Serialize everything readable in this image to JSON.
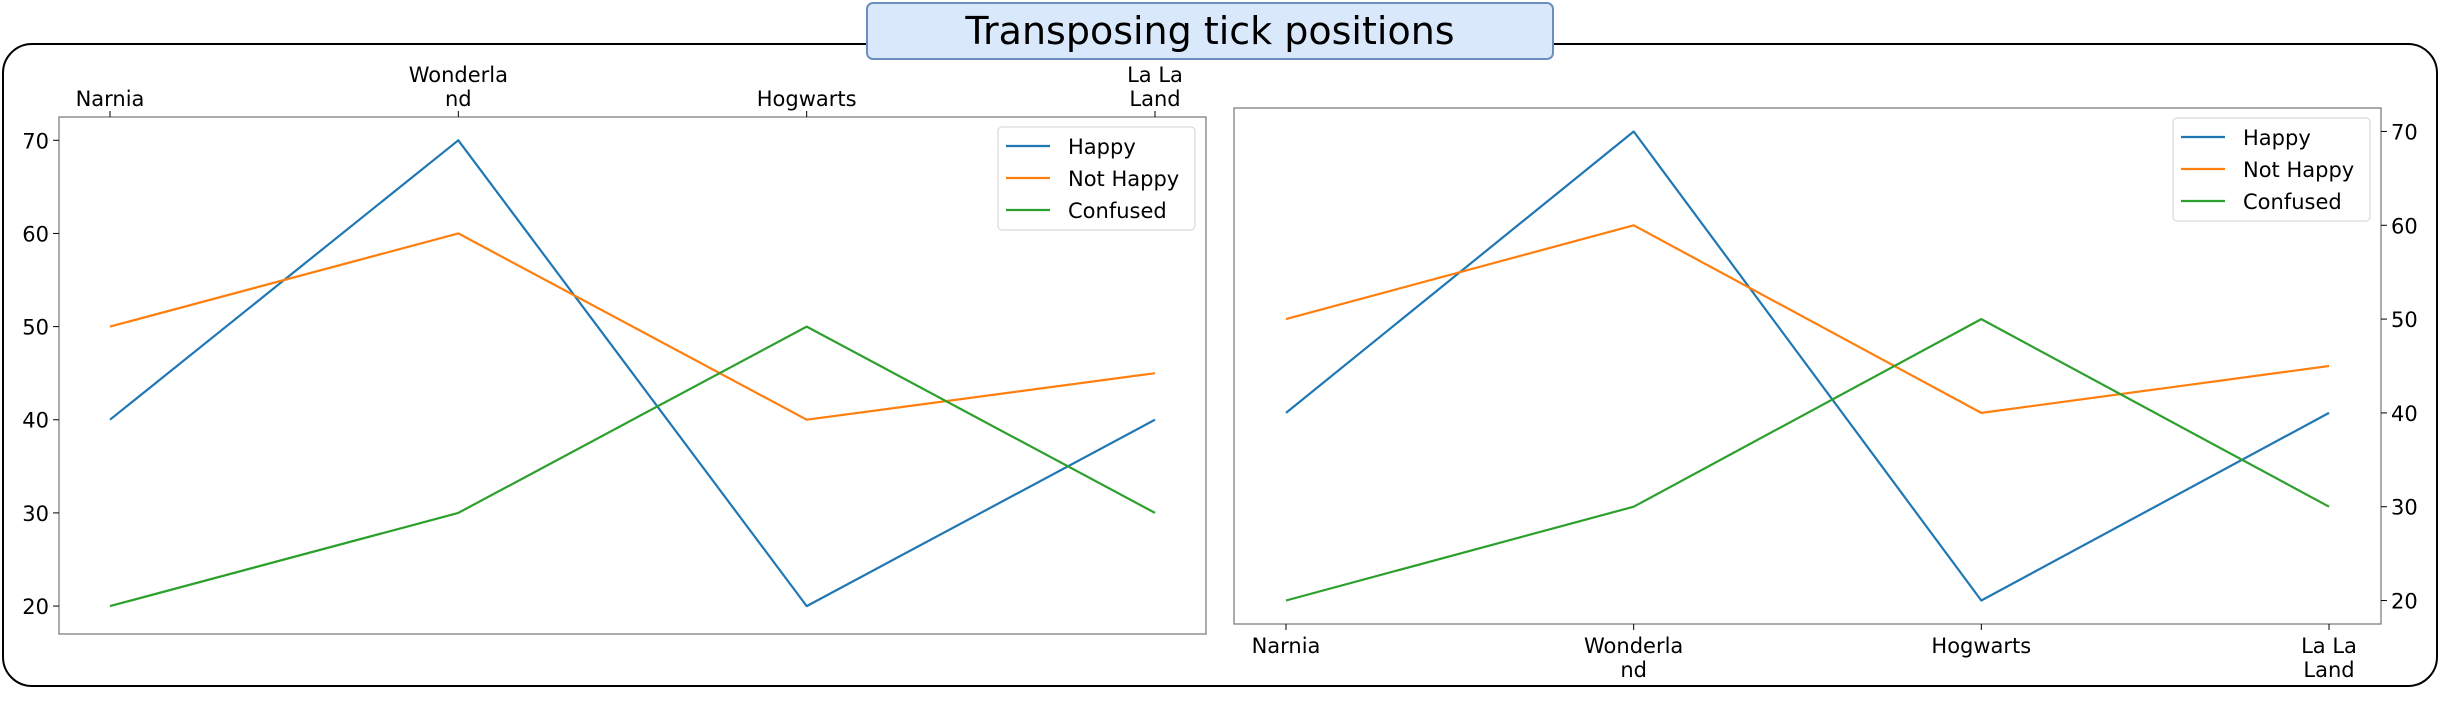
{
  "title": "Transposing tick positions",
  "colors": {
    "Happy": "#1f77b4",
    "Not Happy": "#ff7f0e",
    "Confused": "#2ca02c"
  },
  "chart_data": [
    {
      "type": "line",
      "xaxis_position": "top",
      "yaxis_position": "left",
      "categories": [
        "Narnia",
        "Wonderland",
        "Hogwarts",
        "La La Land"
      ],
      "category_labels": [
        [
          "Narnia"
        ],
        [
          "Wonderla",
          "nd"
        ],
        [
          "Hogwarts"
        ],
        [
          "La La",
          "Land"
        ]
      ],
      "yticks": [
        20,
        30,
        40,
        50,
        60,
        70
      ],
      "ylim": [
        17,
        72.5
      ],
      "legend": "top-right",
      "grid": false,
      "series": [
        {
          "name": "Happy",
          "values": [
            40,
            70,
            20,
            40
          ]
        },
        {
          "name": "Not Happy",
          "values": [
            50,
            60,
            40,
            45
          ]
        },
        {
          "name": "Confused",
          "values": [
            20,
            30,
            50,
            30
          ]
        }
      ]
    },
    {
      "type": "line",
      "xaxis_position": "bottom",
      "yaxis_position": "right",
      "categories": [
        "Narnia",
        "Wonderland",
        "Hogwarts",
        "La La Land"
      ],
      "category_labels": [
        [
          "Narnia"
        ],
        [
          "Wonderla",
          "nd"
        ],
        [
          "Hogwarts"
        ],
        [
          "La La",
          "Land"
        ]
      ],
      "yticks": [
        20,
        30,
        40,
        50,
        60,
        70
      ],
      "ylim": [
        17.5,
        72.5
      ],
      "legend": "top-right",
      "grid": false,
      "series": [
        {
          "name": "Happy",
          "values": [
            40,
            70,
            20,
            40
          ]
        },
        {
          "name": "Not Happy",
          "values": [
            50,
            60,
            40,
            45
          ]
        },
        {
          "name": "Confused",
          "values": [
            20,
            30,
            50,
            30
          ]
        }
      ]
    }
  ]
}
